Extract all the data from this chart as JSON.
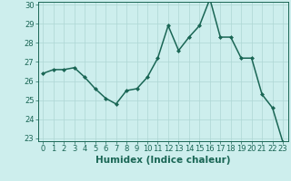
{
  "x": [
    0,
    1,
    2,
    3,
    4,
    5,
    6,
    7,
    8,
    9,
    10,
    11,
    12,
    13,
    14,
    15,
    16,
    17,
    18,
    19,
    20,
    21,
    22,
    23
  ],
  "y": [
    26.4,
    26.6,
    26.6,
    26.7,
    26.2,
    25.6,
    25.1,
    24.8,
    25.5,
    25.6,
    26.2,
    27.2,
    28.9,
    27.6,
    28.3,
    28.9,
    30.3,
    28.3,
    28.3,
    27.2,
    27.2,
    25.3,
    24.6,
    22.8
  ],
  "xlabel": "Humidex (Indice chaleur)",
  "ylim_min": 23,
  "ylim_max": 30,
  "yticks": [
    23,
    24,
    25,
    26,
    27,
    28,
    29,
    30
  ],
  "xticks": [
    0,
    1,
    2,
    3,
    4,
    5,
    6,
    7,
    8,
    9,
    10,
    11,
    12,
    13,
    14,
    15,
    16,
    17,
    18,
    19,
    20,
    21,
    22,
    23
  ],
  "line_color": "#1a6655",
  "marker": "D",
  "marker_size": 2.0,
  "bg_color": "#cdeeed",
  "grid_color": "#aed6d4",
  "axis_color": "#1a6655",
  "tick_color": "#1a6655",
  "label_color": "#1a6655",
  "xlabel_fontsize": 7.5,
  "tick_fontsize": 6.0,
  "line_width": 1.1
}
